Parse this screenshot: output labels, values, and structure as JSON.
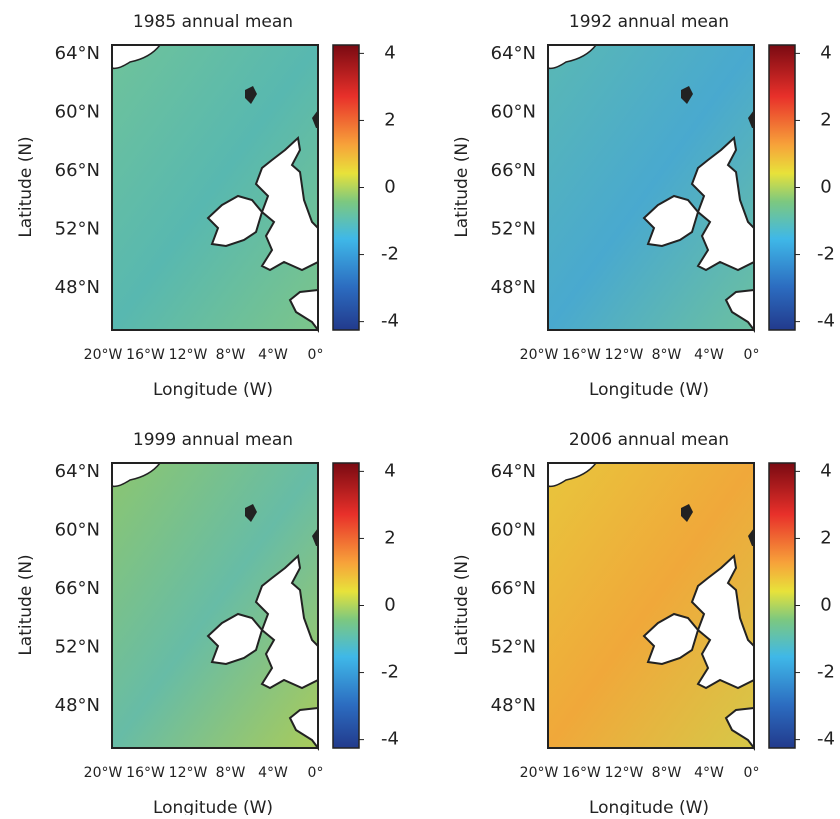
{
  "panels": [
    {
      "title": "1985 annual mean",
      "colors": [
        "#6fc39a",
        "#58b8b0",
        "#7cc58a"
      ]
    },
    {
      "title": "1992 annual mean",
      "colors": [
        "#5ab8b4",
        "#49a9cf",
        "#6cc0a0"
      ]
    },
    {
      "title": "1999 annual mean",
      "colors": [
        "#8cc670",
        "#67bca6",
        "#a9cb5a"
      ]
    },
    {
      "title": "2006 annual mean",
      "colors": [
        "#e8c63c",
        "#f0a83a",
        "#d6c848"
      ]
    }
  ],
  "lat_labels": [
    "64°N",
    "60°N",
    "66°N",
    "52°N",
    "48°N"
  ],
  "lon_labels": [
    "20°W",
    "16°W",
    "12°W",
    "8°W",
    "4°W",
    "0°"
  ],
  "x_label": "Longitude (W)",
  "y_label": "Latitude (N)",
  "colorbar_lim": [
    -4.25,
    4.25
  ],
  "colorbar_ticks": [
    4,
    2,
    0,
    -2,
    -4
  ]
}
